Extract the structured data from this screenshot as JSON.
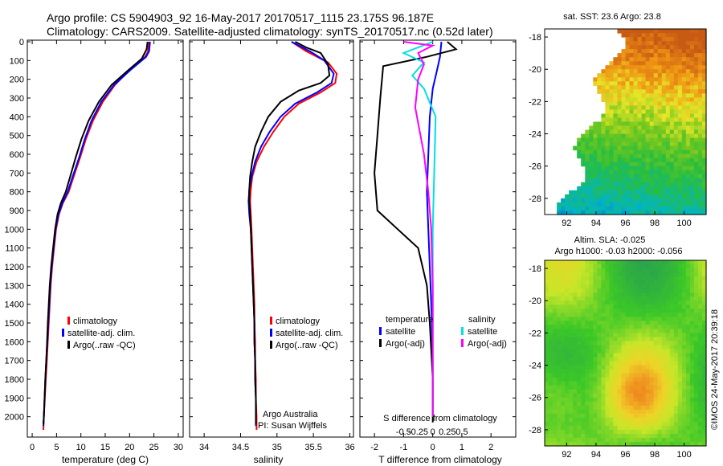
{
  "header": {
    "line1": "Argo profile: CS 5904903_92 16-May-2017 20170517_1115 23.175S 96.187E",
    "line2": "Climatology: CARS2009. Satellite-adjusted climatology: synTS_20170517.nc (0.52d later)"
  },
  "colors": {
    "climatology": "#ff0000",
    "satellite": "#0000ff",
    "argo": "#000000",
    "sal_satellite": "#00e0e0",
    "sal_argo": "#ff00ff"
  },
  "depth_ticks": [
    "0",
    "100",
    "200",
    "300",
    "400",
    "500",
    "600",
    "700",
    "800",
    "900",
    "1000",
    "1100",
    "1200",
    "1300",
    "1400",
    "1500",
    "1600",
    "1700",
    "1800",
    "1900",
    "2000"
  ],
  "temp_panel": {
    "xlabel": "temperature (deg C)",
    "ticks": [
      "0",
      "5",
      "10",
      "15",
      "20",
      "25",
      "30"
    ],
    "legend": [
      "climatology",
      "satellite-adj. clim.",
      "Argo(..raw -QC)"
    ]
  },
  "sal_panel": {
    "xlabel": "salinity",
    "ticks": [
      "34",
      "34.5",
      "35",
      "35.5",
      "36"
    ],
    "legend": [
      "climatology",
      "satellite-adj. clim.",
      "Argo(..raw -QC)"
    ],
    "credit1": "Argo Australia",
    "credit2": "PI: Susan Wijffels"
  },
  "diff_panel": {
    "xlabel": "T difference from climatology",
    "xlabel_top": "S difference from climatology",
    "t_ticks": [
      "-2",
      "-1",
      "0",
      "1",
      "2"
    ],
    "s_ticks": [
      "-0.5",
      "-0.25",
      "0",
      "0.25",
      "0.5"
    ],
    "legend_t_title": "temperature",
    "legend_s_title": "salinity",
    "legend_t": [
      "satellite",
      "Argo(-adj)"
    ],
    "legend_s": [
      "satellite",
      "Argo(-adj)"
    ]
  },
  "map_sst": {
    "title": "sat. SST: 23.6  Argo: 23.8",
    "lat_ticks": [
      "-18",
      "-20",
      "-22",
      "-24",
      "-26",
      "-28"
    ],
    "lon_ticks": [
      "92",
      "94",
      "96",
      "98",
      "100"
    ]
  },
  "map_sla": {
    "title1": "Altim. SLA: -0.025",
    "title2": "Argo h1000: -0.03  h2000: -0.056",
    "lat_ticks": [
      "-18",
      "-20",
      "-22",
      "-24",
      "-26",
      "-28"
    ],
    "lon_ticks": [
      "92",
      "94",
      "96",
      "98",
      "100"
    ]
  },
  "footer": {
    "stamp": "©IMOS 24-May-2017 20:39:18"
  },
  "chart_data": [
    {
      "type": "line",
      "xlabel": "temperature (deg C)",
      "ylabel": "",
      "xlim": [
        -1,
        31
      ],
      "ylim": [
        2100,
        0
      ],
      "series": [
        {
          "name": "climatology",
          "color": "#ff0000",
          "points": [
            [
              24,
              0
            ],
            [
              23.8,
              50
            ],
            [
              23.2,
              80
            ],
            [
              20,
              150
            ],
            [
              17,
              230
            ],
            [
              14.5,
              320
            ],
            [
              12.5,
              420
            ],
            [
              11,
              520
            ],
            [
              9.8,
              620
            ],
            [
              8.5,
              720
            ],
            [
              7.5,
              800
            ],
            [
              6.3,
              860
            ],
            [
              5.5,
              920
            ],
            [
              4.9,
              1000
            ],
            [
              4.5,
              1100
            ],
            [
              4.1,
              1200
            ],
            [
              3.8,
              1300
            ],
            [
              3.6,
              1400
            ],
            [
              3.4,
              1500
            ],
            [
              3.2,
              1600
            ],
            [
              3,
              1700
            ],
            [
              2.8,
              1800
            ],
            [
              2.6,
              1900
            ],
            [
              2.4,
              2000
            ],
            [
              2.3,
              2070
            ]
          ]
        },
        {
          "name": "satellite-adj. clim.",
          "color": "#0000ff",
          "points": [
            [
              24.2,
              0
            ],
            [
              24,
              50
            ],
            [
              23.4,
              80
            ],
            [
              20.2,
              150
            ],
            [
              16.8,
              230
            ],
            [
              14.2,
              320
            ],
            [
              12.2,
              420
            ],
            [
              10.8,
              520
            ],
            [
              9.6,
              620
            ],
            [
              8.3,
              720
            ],
            [
              7.3,
              800
            ],
            [
              6.2,
              860
            ],
            [
              5.4,
              920
            ],
            [
              4.8,
              1000
            ],
            [
              4.4,
              1100
            ],
            [
              4,
              1200
            ],
            [
              3.7,
              1300
            ],
            [
              3.5,
              1400
            ],
            [
              3.3,
              1500
            ],
            [
              3.1,
              1600
            ],
            [
              2.9,
              1700
            ],
            [
              2.7,
              1800
            ],
            [
              2.55,
              1900
            ],
            [
              2.4,
              2000
            ],
            [
              2.3,
              2050
            ]
          ]
        },
        {
          "name": "Argo(..raw -QC)",
          "color": "#000000",
          "points": [
            [
              23.7,
              0
            ],
            [
              23.5,
              40
            ],
            [
              22.5,
              90
            ],
            [
              19.8,
              150
            ],
            [
              16.3,
              230
            ],
            [
              13.7,
              320
            ],
            [
              11.6,
              420
            ],
            [
              10.1,
              520
            ],
            [
              8.9,
              620
            ],
            [
              7.8,
              720
            ],
            [
              6.9,
              800
            ],
            [
              5.9,
              860
            ],
            [
              5.2,
              920
            ],
            [
              4.7,
              1000
            ],
            [
              4.3,
              1100
            ],
            [
              3.9,
              1200
            ],
            [
              3.6,
              1300
            ],
            [
              3.4,
              1400
            ],
            [
              3.2,
              1500
            ],
            [
              3.05,
              1600
            ],
            [
              2.9,
              1700
            ],
            [
              2.7,
              1800
            ],
            [
              2.55,
              1900
            ],
            [
              2.4,
              2000
            ],
            [
              2.3,
              2040
            ]
          ]
        }
      ]
    },
    {
      "type": "line",
      "xlabel": "salinity",
      "ylabel": "",
      "xlim": [
        33.8,
        36.05
      ],
      "ylim": [
        2100,
        0
      ],
      "series": [
        {
          "name": "climatology",
          "color": "#ff0000",
          "points": [
            [
              35.2,
              0
            ],
            [
              35.4,
              50
            ],
            [
              35.7,
              110
            ],
            [
              35.82,
              170
            ],
            [
              35.8,
              220
            ],
            [
              35.6,
              270
            ],
            [
              35.3,
              330
            ],
            [
              35.1,
              400
            ],
            [
              34.95,
              480
            ],
            [
              34.82,
              560
            ],
            [
              34.72,
              640
            ],
            [
              34.66,
              720
            ],
            [
              34.64,
              790
            ],
            [
              34.63,
              850
            ],
            [
              34.64,
              920
            ],
            [
              34.65,
              1000
            ],
            [
              34.66,
              1100
            ],
            [
              34.67,
              1200
            ],
            [
              34.68,
              1300
            ],
            [
              34.69,
              1400
            ],
            [
              34.69,
              1500
            ],
            [
              34.7,
              1600
            ],
            [
              34.7,
              1700
            ],
            [
              34.71,
              1800
            ],
            [
              34.71,
              1900
            ],
            [
              34.72,
              2000
            ],
            [
              34.72,
              2070
            ]
          ]
        },
        {
          "name": "satellite-adj. clim.",
          "color": "#0000ff",
          "points": [
            [
              35.2,
              0
            ],
            [
              35.45,
              50
            ],
            [
              35.65,
              100
            ],
            [
              35.78,
              170
            ],
            [
              35.75,
              220
            ],
            [
              35.55,
              270
            ],
            [
              35.25,
              330
            ],
            [
              35.05,
              400
            ],
            [
              34.9,
              480
            ],
            [
              34.78,
              560
            ],
            [
              34.7,
              640
            ],
            [
              34.65,
              720
            ],
            [
              34.62,
              790
            ],
            [
              34.61,
              850
            ],
            [
              34.62,
              920
            ],
            [
              34.64,
              1000
            ],
            [
              34.65,
              1100
            ],
            [
              34.66,
              1200
            ],
            [
              34.67,
              1300
            ],
            [
              34.68,
              1400
            ],
            [
              34.69,
              1500
            ],
            [
              34.69,
              1600
            ],
            [
              34.7,
              1700
            ],
            [
              34.7,
              1800
            ],
            [
              34.71,
              1900
            ],
            [
              34.71,
              2000
            ],
            [
              34.71,
              2050
            ]
          ]
        },
        {
          "name": "Argo(..raw -QC)",
          "color": "#000000",
          "points": [
            [
              35.25,
              0
            ],
            [
              35.4,
              30
            ],
            [
              35.6,
              60
            ],
            [
              35.7,
              120
            ],
            [
              35.72,
              180
            ],
            [
              35.6,
              220
            ],
            [
              35.3,
              260
            ],
            [
              35.05,
              320
            ],
            [
              34.88,
              400
            ],
            [
              34.78,
              480
            ],
            [
              34.7,
              560
            ],
            [
              34.66,
              640
            ],
            [
              34.63,
              720
            ],
            [
              34.62,
              790
            ],
            [
              34.62,
              850
            ],
            [
              34.63,
              920
            ],
            [
              34.64,
              1000
            ],
            [
              34.65,
              1100
            ],
            [
              34.66,
              1200
            ],
            [
              34.67,
              1300
            ],
            [
              34.68,
              1400
            ],
            [
              34.69,
              1500
            ],
            [
              34.69,
              1600
            ],
            [
              34.7,
              1700
            ],
            [
              34.7,
              1800
            ],
            [
              34.71,
              1900
            ],
            [
              34.71,
              2000
            ],
            [
              34.71,
              2040
            ]
          ]
        }
      ]
    },
    {
      "type": "line",
      "xlabel": "T difference from climatology",
      "ylabel": "",
      "xlim": [
        -2.5,
        2.85
      ],
      "ylim": [
        2100,
        0
      ],
      "series": [
        {
          "name": "temperature satellite",
          "color": "#0000ff",
          "points": [
            [
              0.3,
              0
            ],
            [
              0.25,
              80
            ],
            [
              0.15,
              150
            ],
            [
              0,
              250
            ],
            [
              -0.1,
              400
            ],
            [
              -0.15,
              600
            ],
            [
              -0.2,
              800
            ],
            [
              -0.15,
              1000
            ],
            [
              -0.1,
              1200
            ],
            [
              -0.05,
              1400
            ],
            [
              0,
              1700
            ],
            [
              0,
              2000
            ]
          ]
        },
        {
          "name": "temperature Argo(-adj)",
          "color": "#000000",
          "points": [
            [
              0.5,
              0
            ],
            [
              0.8,
              40
            ],
            [
              -0.2,
              80
            ],
            [
              -1.7,
              130
            ],
            [
              -1.8,
              300
            ],
            [
              -1.9,
              500
            ],
            [
              -2,
              700
            ],
            [
              -1.9,
              900
            ],
            [
              -1.2,
              1000
            ],
            [
              -0.5,
              1100
            ],
            [
              -0.2,
              1300
            ],
            [
              -0.1,
              1500
            ],
            [
              0,
              1800
            ],
            [
              0,
              2030
            ]
          ]
        },
        {
          "name": "salinity satellite",
          "color": "#00e0e0",
          "points": [
            [
              0,
              0
            ],
            [
              -1,
              60
            ],
            [
              -0.3,
              110
            ],
            [
              -0.7,
              180
            ],
            [
              -0.3,
              250
            ],
            [
              0.1,
              400
            ],
            [
              0.05,
              700
            ],
            [
              0,
              1000
            ],
            [
              0,
              1400
            ],
            [
              0,
              2000
            ]
          ]
        },
        {
          "name": "salinity Argo(-adj)",
          "color": "#ff00ff",
          "points": [
            [
              -1,
              0
            ],
            [
              0,
              20
            ],
            [
              -0.5,
              60
            ],
            [
              -0.3,
              120
            ],
            [
              -0.5,
              200
            ],
            [
              -0.6,
              350
            ],
            [
              -0.3,
              600
            ],
            [
              -0.15,
              800
            ],
            [
              -0.05,
              1000
            ],
            [
              0,
              1300
            ],
            [
              0,
              2000
            ]
          ]
        }
      ]
    },
    {
      "type": "heatmap",
      "title": "sat. SST: 23.6  Argo: 23.8",
      "xlim": [
        90.5,
        101.5
      ],
      "ylim": [
        -29,
        -17.5
      ]
    },
    {
      "type": "heatmap",
      "title": "Altim. SLA: -0.025",
      "xlim": [
        90.5,
        101.5
      ],
      "ylim": [
        -29,
        -17.5
      ]
    }
  ]
}
